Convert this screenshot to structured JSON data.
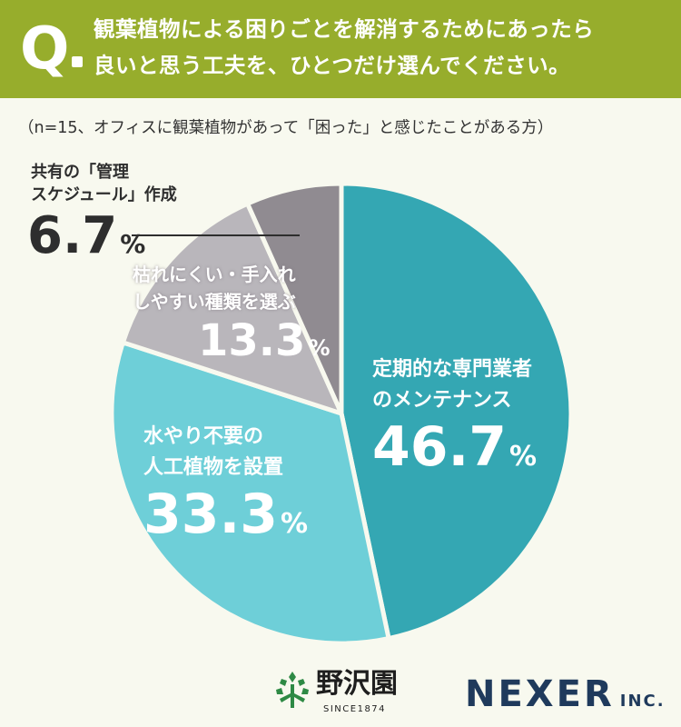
{
  "header": {
    "q_mark": "Q",
    "question_line1": "観葉植物による困りごとを解消するためにあったら",
    "question_line2": "良いと思う工夫を、ひとつだけ選んでください。",
    "color": "#97ad2c"
  },
  "note": "（n=15、オフィスに観葉植物があって「困った」と感じたことがある方）",
  "chart_data": {
    "type": "pie",
    "title": "",
    "slices": [
      {
        "label_line1": "定期的な専門業者",
        "label_line2": "のメンテナンス",
        "value": 46.7,
        "display": "46.7",
        "color": "#34a7b3"
      },
      {
        "label_line1": "水やり不要の",
        "label_line2": "人工植物を設置",
        "value": 33.3,
        "display": "33.3",
        "color": "#6ecfd8"
      },
      {
        "label_line1": "枯れにくい・手入れ",
        "label_line2": "しやすい種類を選ぶ",
        "value": 13.3,
        "display": "13.3",
        "color": "#b9b6bb"
      },
      {
        "label_line1": "共有の「管理",
        "label_line2": "スケジュール」作成",
        "value": 6.7,
        "display": "6.7",
        "color": "#908b91"
      }
    ],
    "unit": "%"
  },
  "footer": {
    "brand_a_name": "野沢園",
    "brand_a_since": "SINCE1874",
    "brand_b_name": "NEXER",
    "brand_b_suffix": "INC."
  }
}
